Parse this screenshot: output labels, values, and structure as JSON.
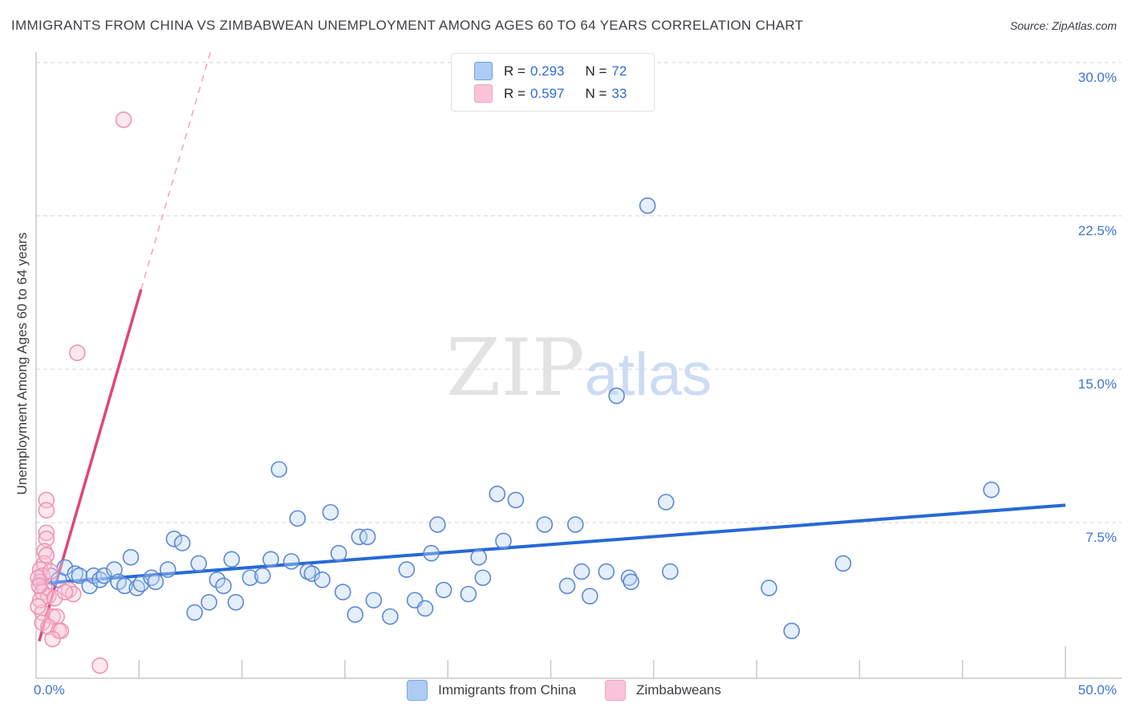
{
  "header": {
    "title": "IMMIGRANTS FROM CHINA VS ZIMBABWEAN UNEMPLOYMENT AMONG AGES 60 TO 64 YEARS CORRELATION CHART",
    "source": "Source: ZipAtlas.com"
  },
  "legend_box": {
    "rows": [
      {
        "r_label": "R = ",
        "r": "0.293",
        "n_label": "N = ",
        "n": "72"
      },
      {
        "r_label": "R = ",
        "r": "0.597",
        "n_label": "N = ",
        "n": "33"
      }
    ]
  },
  "watermark": {
    "zip": "ZIP",
    "atlas": "atlas"
  },
  "bottom_legend": {
    "items": [
      {
        "label": "Immigrants from China"
      },
      {
        "label": "Zimbabweans"
      }
    ]
  },
  "axis_labels": {
    "y_title": "Unemployment Among Ages 60 to 64 years",
    "x_left": "0.0%",
    "x_right": "50.0%"
  },
  "chart_data": {
    "type": "scatter",
    "title": "IMMIGRANTS FROM CHINA VS ZIMBABWEAN UNEMPLOYMENT AMONG AGES 60 TO 64 YEARS CORRELATION CHART",
    "xlabel": "Immigrants from China (%)",
    "ylabel": "Unemployment Among Ages 60 to 64 years",
    "xlim": [
      0,
      50
    ],
    "ylim": [
      0,
      30.6
    ],
    "x_tick_step": 5,
    "y_ticks": [
      7.5,
      15,
      22.5,
      30
    ],
    "y_tick_format": "percent",
    "grid": "horizontal-dashed",
    "legend_position": "bottom-center",
    "series": [
      {
        "name": "Immigrants from China",
        "R": 0.293,
        "N": 72,
        "stroke": "#5b87d5",
        "fill": "#bed7f6",
        "trend_color": "#2669d6",
        "trend": {
          "x1": 0,
          "y1": 4.5,
          "x2": 50,
          "y2": 8.35
        },
        "points": [
          [
            0.7,
            4.9
          ],
          [
            1.1,
            4.7
          ],
          [
            1.4,
            5.3
          ],
          [
            1.9,
            5.0
          ],
          [
            2.1,
            4.9
          ],
          [
            2.6,
            4.4
          ],
          [
            2.8,
            4.9
          ],
          [
            3.1,
            4.7
          ],
          [
            3.3,
            4.9
          ],
          [
            3.8,
            5.2
          ],
          [
            4.0,
            4.6
          ],
          [
            4.3,
            4.4
          ],
          [
            4.6,
            5.8
          ],
          [
            4.9,
            4.3
          ],
          [
            5.1,
            4.5
          ],
          [
            5.6,
            4.8
          ],
          [
            5.8,
            4.6
          ],
          [
            6.4,
            5.2
          ],
          [
            6.7,
            6.7
          ],
          [
            7.1,
            6.5
          ],
          [
            7.9,
            5.5
          ],
          [
            7.7,
            3.1
          ],
          [
            8.4,
            3.6
          ],
          [
            8.8,
            4.7
          ],
          [
            9.1,
            4.4
          ],
          [
            9.5,
            5.7
          ],
          [
            9.7,
            3.6
          ],
          [
            10.4,
            4.8
          ],
          [
            11.0,
            4.9
          ],
          [
            11.4,
            5.7
          ],
          [
            12.4,
            5.6
          ],
          [
            11.8,
            10.1
          ],
          [
            12.7,
            7.7
          ],
          [
            14.3,
            8.0
          ],
          [
            13.2,
            5.1
          ],
          [
            13.4,
            5.0
          ],
          [
            13.9,
            4.7
          ],
          [
            14.7,
            6.0
          ],
          [
            14.9,
            4.1
          ],
          [
            15.5,
            3.0
          ],
          [
            15.7,
            6.8
          ],
          [
            16.1,
            6.8
          ],
          [
            16.4,
            3.7
          ],
          [
            17.2,
            2.9
          ],
          [
            18.0,
            5.2
          ],
          [
            18.4,
            3.7
          ],
          [
            18.9,
            3.3
          ],
          [
            19.2,
            6.0
          ],
          [
            19.5,
            7.4
          ],
          [
            19.8,
            4.2
          ],
          [
            21.0,
            4.0
          ],
          [
            21.5,
            5.8
          ],
          [
            21.7,
            4.8
          ],
          [
            22.4,
            8.9
          ],
          [
            23.3,
            8.6
          ],
          [
            22.7,
            6.6
          ],
          [
            24.7,
            7.4
          ],
          [
            26.2,
            7.4
          ],
          [
            25.8,
            4.4
          ],
          [
            26.5,
            5.1
          ],
          [
            26.9,
            3.9
          ],
          [
            27.7,
            5.1
          ],
          [
            28.8,
            4.8
          ],
          [
            28.9,
            4.6
          ],
          [
            30.6,
            8.5
          ],
          [
            30.8,
            5.1
          ],
          [
            35.6,
            4.3
          ],
          [
            36.7,
            2.2
          ],
          [
            29.7,
            23.0
          ],
          [
            28.2,
            13.7
          ],
          [
            39.2,
            5.5
          ],
          [
            46.4,
            9.1
          ]
        ]
      },
      {
        "name": "Zimbabweans",
        "R": 0.597,
        "N": 33,
        "stroke": "#ef92b2",
        "fill": "#fbc6da",
        "trend_color": "#e0457b",
        "trend": {
          "x1": 0.15,
          "y1": 1.7,
          "x2": 5.1,
          "y2": 18.9
        },
        "trend_dashed_to": {
          "x": 8.46,
          "y": 30.5
        },
        "points": [
          [
            4.25,
            27.2
          ],
          [
            2.0,
            15.8
          ],
          [
            0.5,
            8.6
          ],
          [
            0.5,
            8.1
          ],
          [
            0.5,
            7.0
          ],
          [
            0.5,
            6.7
          ],
          [
            0.4,
            6.1
          ],
          [
            0.4,
            5.5
          ],
          [
            0.2,
            5.2
          ],
          [
            0.3,
            4.9
          ],
          [
            0.2,
            4.6
          ],
          [
            0.4,
            4.3
          ],
          [
            0.3,
            4.1
          ],
          [
            1.6,
            4.2
          ],
          [
            1.8,
            4.0
          ],
          [
            0.6,
            3.9
          ],
          [
            0.9,
            3.8
          ],
          [
            0.3,
            3.1
          ],
          [
            0.8,
            2.9
          ],
          [
            1.0,
            2.9
          ],
          [
            0.3,
            2.6
          ],
          [
            0.6,
            2.4
          ],
          [
            1.1,
            2.2
          ],
          [
            1.2,
            2.2
          ],
          [
            0.8,
            1.8
          ],
          [
            3.1,
            0.5
          ],
          [
            0.1,
            4.8
          ],
          [
            0.15,
            4.4
          ],
          [
            0.2,
            3.7
          ],
          [
            0.1,
            3.4
          ],
          [
            0.5,
            5.9
          ],
          [
            0.7,
            5.1
          ],
          [
            1.4,
            4.1
          ]
        ]
      }
    ]
  }
}
